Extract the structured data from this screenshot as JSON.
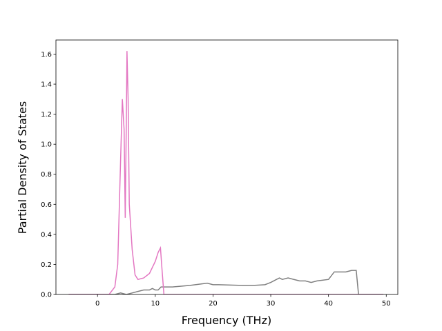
{
  "chart_data": {
    "type": "line",
    "x_label": "Frequency (THz)",
    "y_label": "Partial Density of States",
    "xlim": [
      -7.2,
      52.0
    ],
    "ylim": [
      0,
      1.694
    ],
    "xticks": [
      0,
      10,
      20,
      30,
      40,
      50
    ],
    "yticks": [
      {
        "value": 0,
        "label": "0.0"
      },
      0.2,
      0.4,
      0.6,
      0.8,
      {
        "value": 1,
        "label": "1.0"
      },
      1.2,
      1.4,
      1.6
    ],
    "series": [
      {
        "color": "#7f7f7f",
        "x": [
          -5,
          3,
          4,
          5,
          6,
          7,
          8,
          9,
          9.5,
          10,
          10.5,
          11,
          12,
          13,
          16,
          19,
          20,
          21,
          25,
          27,
          29,
          30,
          31,
          31.5,
          32,
          33,
          34,
          35,
          36,
          37,
          38,
          40,
          41,
          42,
          43,
          44,
          44.8,
          45.2,
          49.5
        ],
        "values": [
          0,
          0,
          0.01,
          0,
          0.01,
          0.02,
          0.03,
          0.03,
          0.04,
          0.03,
          0.03,
          0.05,
          0.05,
          0.05,
          0.06,
          0.075,
          0.065,
          0.065,
          0.06,
          0.06,
          0.065,
          0.08,
          0.1,
          0.11,
          0.1,
          0.11,
          0.1,
          0.09,
          0.09,
          0.08,
          0.09,
          0.1,
          0.15,
          0.15,
          0.15,
          0.16,
          0.16,
          0,
          0
        ]
      },
      {
        "color": "#e377c2",
        "x": [
          -5,
          2,
          3,
          3.5,
          4,
          4.3,
          4.6,
          4.8,
          5.0,
          5.1,
          5.3,
          5.5,
          6,
          6.5,
          7,
          8,
          9,
          10,
          10.5,
          10.9,
          11.2,
          11.5,
          20,
          49.5
        ],
        "values": [
          0,
          0,
          0.05,
          0.2,
          0.9,
          1.3,
          1.1,
          0.51,
          1.2,
          1.62,
          1.3,
          0.6,
          0.3,
          0.13,
          0.1,
          0.11,
          0.14,
          0.22,
          0.28,
          0.31,
          0.15,
          0,
          0,
          0
        ]
      }
    ]
  }
}
